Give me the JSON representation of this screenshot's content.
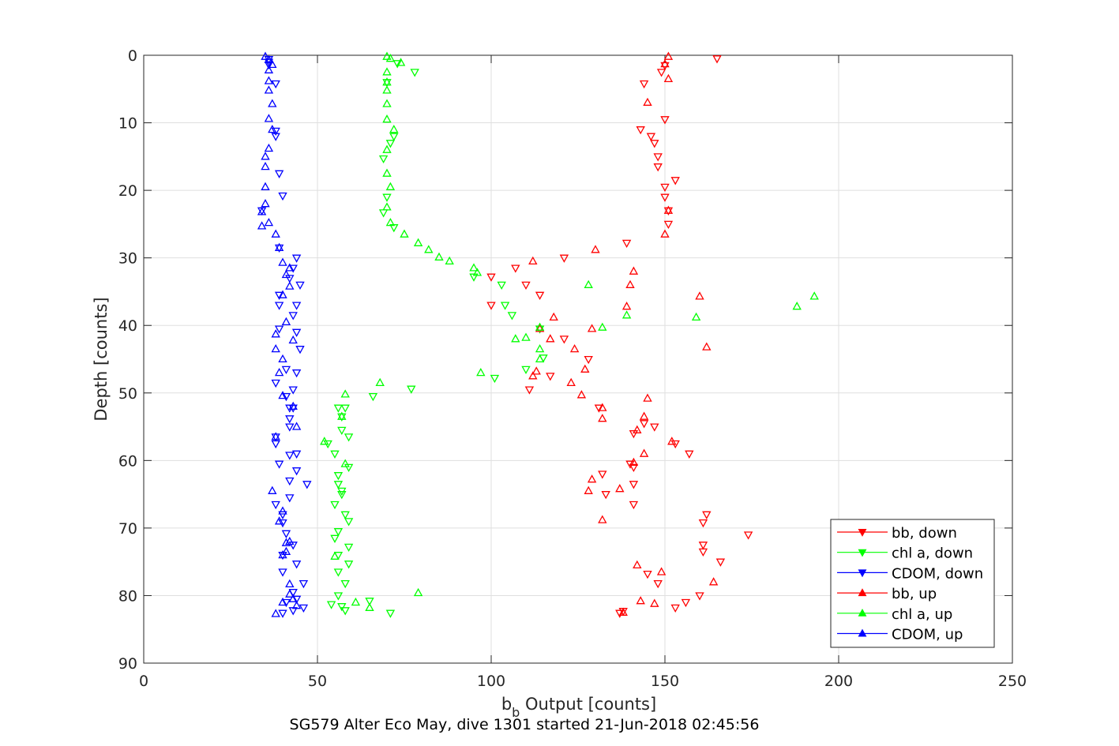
{
  "chart_data": {
    "type": "scatter",
    "title": "SG579 Alter Eco May, dive 1301 started 21-Jun-2018 02:45:56",
    "xlabel": "b",
    "xlabel_sub": "b",
    "xlabel_rest": " Output [counts]",
    "ylabel": "Depth [counts]",
    "xlim": [
      0,
      250
    ],
    "ylim": [
      0,
      90
    ],
    "y_reversed": true,
    "grid": true,
    "legend_position": "bottom-right",
    "xticks": [
      0,
      50,
      100,
      150,
      200,
      250
    ],
    "yticks": [
      0,
      10,
      20,
      30,
      40,
      50,
      60,
      70,
      80,
      90
    ],
    "series": [
      {
        "name": "bb, down",
        "color": "#ff0000",
        "marker": "triangle-down",
        "points": [
          [
            165,
            0.5
          ],
          [
            150,
            1.5
          ],
          [
            149,
            2.5
          ],
          [
            144,
            4.2
          ],
          [
            150,
            9.5
          ],
          [
            143,
            11
          ],
          [
            146,
            12
          ],
          [
            147,
            13
          ],
          [
            148,
            15
          ],
          [
            148,
            16.5
          ],
          [
            153,
            18.5
          ],
          [
            150,
            19.5
          ],
          [
            150,
            21
          ],
          [
            151,
            23
          ],
          [
            151,
            25
          ],
          [
            139,
            27.8
          ],
          [
            121,
            30
          ],
          [
            107,
            31.5
          ],
          [
            100,
            32.8
          ],
          [
            110,
            34
          ],
          [
            100,
            37
          ],
          [
            114,
            35.5
          ],
          [
            121,
            42
          ],
          [
            128,
            45
          ],
          [
            117,
            47.5
          ],
          [
            111,
            49.5
          ],
          [
            131,
            52.2
          ],
          [
            144,
            54.5
          ],
          [
            141,
            56
          ],
          [
            147,
            55
          ],
          [
            153,
            57.5
          ],
          [
            157,
            59
          ],
          [
            140,
            60.5
          ],
          [
            141,
            61
          ],
          [
            132,
            62
          ],
          [
            141,
            63.5
          ],
          [
            133,
            65
          ],
          [
            141,
            66.5
          ],
          [
            162,
            68
          ],
          [
            161,
            69.2
          ],
          [
            174,
            71
          ],
          [
            161,
            72.5
          ],
          [
            161,
            73.5
          ],
          [
            166,
            75
          ],
          [
            145,
            76.8
          ],
          [
            148,
            78.2
          ],
          [
            160,
            80
          ],
          [
            156,
            81
          ],
          [
            153,
            81.8
          ],
          [
            138,
            82.3
          ],
          [
            137,
            82.6
          ]
        ]
      },
      {
        "name": "chl a, down",
        "color": "#00ff00",
        "marker": "triangle-down",
        "points": [
          [
            73,
            1.2
          ],
          [
            78,
            2.5
          ],
          [
            70,
            4
          ],
          [
            72,
            12
          ],
          [
            71,
            13
          ],
          [
            69,
            15.3
          ],
          [
            70,
            21
          ],
          [
            69,
            23.3
          ],
          [
            72,
            25.5
          ],
          [
            95,
            32.8
          ],
          [
            103,
            34
          ],
          [
            104,
            37
          ],
          [
            106,
            38.5
          ],
          [
            114,
            40.5
          ],
          [
            115,
            44.8
          ],
          [
            110,
            46.5
          ],
          [
            101,
            47.8
          ],
          [
            77,
            49.4
          ],
          [
            66,
            50.5
          ],
          [
            56,
            52.2
          ],
          [
            58,
            52.2
          ],
          [
            57,
            53.5
          ],
          [
            57,
            55.5
          ],
          [
            59,
            56.5
          ],
          [
            53,
            57.5
          ],
          [
            55,
            59
          ],
          [
            59,
            61
          ],
          [
            56,
            62.2
          ],
          [
            56,
            63.5
          ],
          [
            57,
            64.5
          ],
          [
            57,
            65
          ],
          [
            55,
            66.5
          ],
          [
            58,
            68
          ],
          [
            59,
            69
          ],
          [
            56,
            70.5
          ],
          [
            55,
            71.5
          ],
          [
            59,
            72.8
          ],
          [
            56,
            74
          ],
          [
            59,
            75.3
          ],
          [
            56,
            76.5
          ],
          [
            58,
            78.2
          ],
          [
            56,
            80
          ],
          [
            65,
            80.8
          ],
          [
            54,
            81.3
          ],
          [
            57,
            81.6
          ],
          [
            58,
            82.2
          ],
          [
            71,
            82.6
          ]
        ]
      },
      {
        "name": "CDOM, down",
        "color": "#0000ff",
        "marker": "triangle-down",
        "points": [
          [
            36,
            0.6
          ],
          [
            36,
            1
          ],
          [
            36,
            1.4
          ],
          [
            38,
            4.2
          ],
          [
            38,
            11.2
          ],
          [
            38,
            12
          ],
          [
            39,
            17.5
          ],
          [
            40,
            20.8
          ],
          [
            34,
            23
          ],
          [
            39,
            28.5
          ],
          [
            44,
            30
          ],
          [
            43,
            31.5
          ],
          [
            42,
            33
          ],
          [
            45,
            34
          ],
          [
            39,
            35.5
          ],
          [
            39,
            37
          ],
          [
            44,
            37
          ],
          [
            43,
            38.5
          ],
          [
            39,
            40.5
          ],
          [
            44,
            41
          ],
          [
            45,
            43.5
          ],
          [
            41,
            46.5
          ],
          [
            44,
            47
          ],
          [
            38,
            48.5
          ],
          [
            43,
            49.5
          ],
          [
            41,
            50.5
          ],
          [
            42,
            52.2
          ],
          [
            43,
            52.2
          ],
          [
            42,
            53.8
          ],
          [
            42,
            55
          ],
          [
            38,
            56.5
          ],
          [
            38,
            57.5
          ],
          [
            42,
            59.2
          ],
          [
            44,
            59
          ],
          [
            39,
            60.5
          ],
          [
            44,
            61.5
          ],
          [
            42,
            63
          ],
          [
            47,
            63.5
          ],
          [
            42,
            65.5
          ],
          [
            38,
            66.5
          ],
          [
            40,
            68
          ],
          [
            40,
            69.2
          ],
          [
            41,
            70.8
          ],
          [
            43,
            72.5
          ],
          [
            40,
            74
          ],
          [
            44,
            75.3
          ],
          [
            40,
            76.5
          ],
          [
            46,
            78.2
          ],
          [
            43,
            79.5
          ],
          [
            44,
            80.5
          ],
          [
            41,
            81
          ],
          [
            46,
            81.8
          ],
          [
            43,
            82.2
          ],
          [
            40,
            82.6
          ]
        ]
      },
      {
        "name": "bb, up",
        "color": "#ff0000",
        "marker": "triangle-up",
        "points": [
          [
            151,
            0.2
          ],
          [
            150,
            1.3
          ],
          [
            151,
            3.5
          ],
          [
            145,
            7
          ],
          [
            151,
            23
          ],
          [
            150,
            26.5
          ],
          [
            130,
            28.8
          ],
          [
            112,
            30.5
          ],
          [
            141,
            32
          ],
          [
            140,
            34
          ],
          [
            139,
            37.2
          ],
          [
            160,
            35.7
          ],
          [
            129,
            40.5
          ],
          [
            162,
            43.2
          ],
          [
            118,
            38.8
          ],
          [
            114,
            40.5
          ],
          [
            117,
            42
          ],
          [
            124,
            43.5
          ],
          [
            127,
            46.5
          ],
          [
            112,
            47.5
          ],
          [
            113,
            46.8
          ],
          [
            123,
            48.5
          ],
          [
            126,
            50.3
          ],
          [
            145,
            50.8
          ],
          [
            132,
            52.2
          ],
          [
            132,
            53.8
          ],
          [
            144,
            53.5
          ],
          [
            142,
            55.5
          ],
          [
            152,
            57.2
          ],
          [
            144,
            59
          ],
          [
            141,
            60.3
          ],
          [
            129,
            62.8
          ],
          [
            128,
            64.5
          ],
          [
            137,
            64.2
          ],
          [
            132,
            68.8
          ],
          [
            142,
            75.5
          ],
          [
            149,
            76.5
          ],
          [
            143,
            80.8
          ],
          [
            147,
            81.2
          ],
          [
            164,
            78
          ],
          [
            138,
            82.5
          ]
        ]
      },
      {
        "name": "chl a, up",
        "color": "#00ff00",
        "marker": "triangle-up",
        "points": [
          [
            70,
            0.2
          ],
          [
            71,
            0.5
          ],
          [
            74,
            1.1
          ],
          [
            70,
            2.5
          ],
          [
            70,
            4
          ],
          [
            70,
            5.2
          ],
          [
            70,
            7.2
          ],
          [
            70,
            9.5
          ],
          [
            72,
            11
          ],
          [
            70,
            14
          ],
          [
            70,
            17.5
          ],
          [
            71,
            19.5
          ],
          [
            70,
            22.5
          ],
          [
            71,
            24.8
          ],
          [
            75,
            26.5
          ],
          [
            79,
            27.8
          ],
          [
            82,
            28.8
          ],
          [
            85,
            29.9
          ],
          [
            88,
            30.5
          ],
          [
            95,
            31.5
          ],
          [
            96,
            32.2
          ],
          [
            128,
            34
          ],
          [
            193,
            35.7
          ],
          [
            188,
            37.2
          ],
          [
            139,
            38.5
          ],
          [
            159,
            38.8
          ],
          [
            132,
            40.3
          ],
          [
            114,
            40.3
          ],
          [
            107,
            42
          ],
          [
            110,
            41.8
          ],
          [
            114,
            43.5
          ],
          [
            114,
            45
          ],
          [
            97,
            47
          ],
          [
            68,
            48.5
          ],
          [
            58,
            50.2
          ],
          [
            57,
            53.5
          ],
          [
            52,
            57.2
          ],
          [
            58,
            60.5
          ],
          [
            55,
            74.2
          ],
          [
            79,
            79.6
          ],
          [
            61,
            81
          ],
          [
            65,
            81.8
          ]
        ]
      },
      {
        "name": "CDOM, up",
        "color": "#0000ff",
        "marker": "triangle-up",
        "points": [
          [
            35,
            0.2
          ],
          [
            36,
            0.7
          ],
          [
            37,
            1.4
          ],
          [
            36,
            2.2
          ],
          [
            36,
            3.8
          ],
          [
            36,
            5.2
          ],
          [
            37,
            7.2
          ],
          [
            36,
            9.4
          ],
          [
            37,
            11
          ],
          [
            36,
            13.8
          ],
          [
            35,
            15
          ],
          [
            35,
            16.5
          ],
          [
            35,
            19.5
          ],
          [
            35,
            22
          ],
          [
            34,
            23.2
          ],
          [
            34,
            25.3
          ],
          [
            36,
            24.8
          ],
          [
            38,
            26.5
          ],
          [
            39,
            28.5
          ],
          [
            40,
            30.7
          ],
          [
            42,
            31.5
          ],
          [
            41,
            32.5
          ],
          [
            42,
            34.2
          ],
          [
            40,
            35.5
          ],
          [
            41,
            39.5
          ],
          [
            38,
            41.3
          ],
          [
            43,
            42.2
          ],
          [
            38,
            43.5
          ],
          [
            40,
            45
          ],
          [
            39,
            47
          ],
          [
            40,
            50.4
          ],
          [
            43,
            52
          ],
          [
            44,
            55
          ],
          [
            38,
            56.5
          ],
          [
            37,
            64.5
          ],
          [
            40,
            67.5
          ],
          [
            39,
            69
          ],
          [
            41,
            72.2
          ],
          [
            42,
            72
          ],
          [
            41,
            73.5
          ],
          [
            40,
            74
          ],
          [
            42,
            78.3
          ],
          [
            42,
            79.8
          ],
          [
            43,
            80.5
          ],
          [
            40,
            81
          ],
          [
            44,
            81.5
          ],
          [
            38,
            82.7
          ]
        ]
      }
    ]
  }
}
